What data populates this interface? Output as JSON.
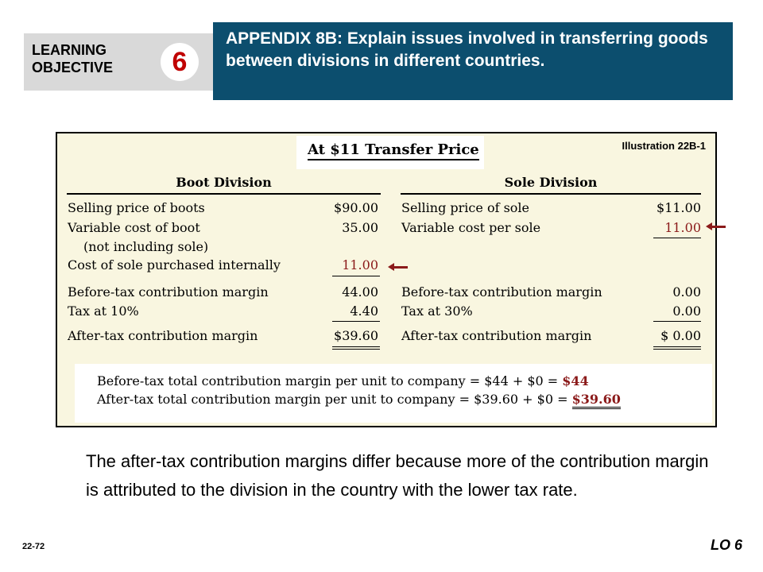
{
  "learning_objective": {
    "label_line1": "LEARNING",
    "label_line2": "OBJECTIVE",
    "number": "6"
  },
  "appendix_title": "APPENDIX 8B: Explain issues involved in transferring goods between divisions in different countries.",
  "illustration": {
    "title": "At $11 Transfer Price",
    "number_label": "Illustration 22B-1",
    "boot": {
      "header": "Boot Division",
      "selling_price_label": "Selling price of boots",
      "selling_price": "$90.00",
      "variable_cost_label": "Variable cost of boot",
      "variable_cost": "35.00",
      "variable_cost_note": "(not including sole)",
      "sole_cost_label": "Cost of sole purchased internally",
      "sole_cost": "11.00",
      "before_tax_label": "Before-tax contribution margin",
      "before_tax": "44.00",
      "tax_label": "Tax at 10%",
      "tax": "4.40",
      "after_tax_label": "After-tax contribution margin",
      "after_tax": "$39.60"
    },
    "sole": {
      "header": "Sole Division",
      "selling_price_label": "Selling price of sole",
      "selling_price": "$11.00",
      "variable_cost_label": "Variable cost per sole",
      "variable_cost": "11.00",
      "before_tax_label": "Before-tax contribution margin",
      "before_tax": "0.00",
      "tax_label": "Tax at 30%",
      "tax": "0.00",
      "after_tax_label": "After-tax contribution margin",
      "after_tax": "$ 0.00"
    },
    "totals": {
      "before_tax_text": "Before-tax total contribution margin per unit to company = $44 + $0 = ",
      "before_tax_value": "$44",
      "after_tax_text": "After-tax total contribution margin per unit to company = $39.60 + $0 = ",
      "after_tax_value": "$39.60"
    }
  },
  "caption": "The after-tax contribution margins differ because more of the contribution margin is attributed to the division in the country with the lower tax rate.",
  "footer": {
    "slide_number": "22-72",
    "lo_label": "LO 6"
  },
  "colors": {
    "banner": "#0c4e6e",
    "accent_red": "#c00000",
    "figure_bg": "#f9f6e0",
    "highlight": "#8b1a1a"
  }
}
